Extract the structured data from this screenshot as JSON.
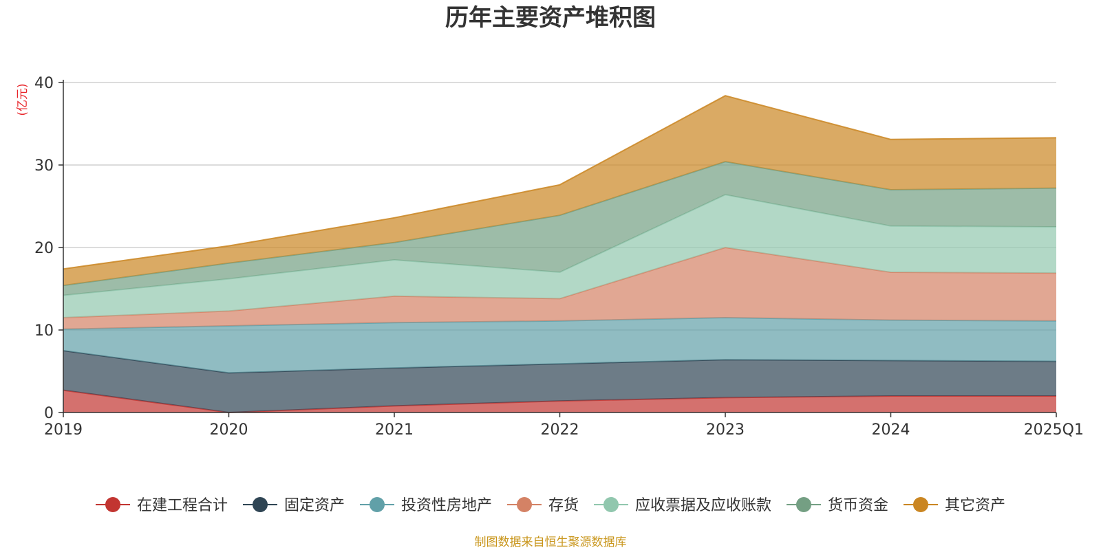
{
  "chart_data": {
    "type": "area",
    "stacked": true,
    "title": "历年主要资产堆积图",
    "ylabel": "(亿元)",
    "categories": [
      "2019",
      "2020",
      "2021",
      "2022",
      "2023",
      "2024",
      "2025Q1"
    ],
    "ylim": [
      0,
      40
    ],
    "yticks": [
      0,
      10,
      20,
      30,
      40
    ],
    "grid": true,
    "legend_position": "bottom",
    "series": [
      {
        "name": "在建工程合计",
        "color": "#c23531",
        "values": [
          2.7,
          0.0,
          0.8,
          1.4,
          1.8,
          2.0,
          2.0
        ]
      },
      {
        "name": "固定资产",
        "color": "#2f4554",
        "values": [
          4.8,
          4.8,
          4.6,
          4.5,
          4.6,
          4.3,
          4.2
        ]
      },
      {
        "name": "投资性房地产",
        "color": "#61a0a8",
        "values": [
          2.6,
          5.7,
          5.5,
          5.2,
          5.1,
          4.9,
          4.9
        ]
      },
      {
        "name": "存货",
        "color": "#d48265",
        "values": [
          1.4,
          1.8,
          3.2,
          2.7,
          8.5,
          5.8,
          5.8
        ]
      },
      {
        "name": "应收票据及应收账款",
        "color": "#91c7ae",
        "values": [
          2.7,
          3.9,
          4.4,
          3.2,
          6.4,
          5.6,
          5.6
        ]
      },
      {
        "name": "货币资金",
        "color": "#749f83",
        "values": [
          1.2,
          1.9,
          2.1,
          6.9,
          4.0,
          4.4,
          4.7
        ]
      },
      {
        "name": "其它资产",
        "color": "#ca8622",
        "values": [
          2.0,
          2.1,
          3.0,
          3.7,
          8.0,
          6.1,
          6.1
        ]
      }
    ]
  },
  "footer": {
    "source": "制图数据来自恒生聚源数据库"
  }
}
